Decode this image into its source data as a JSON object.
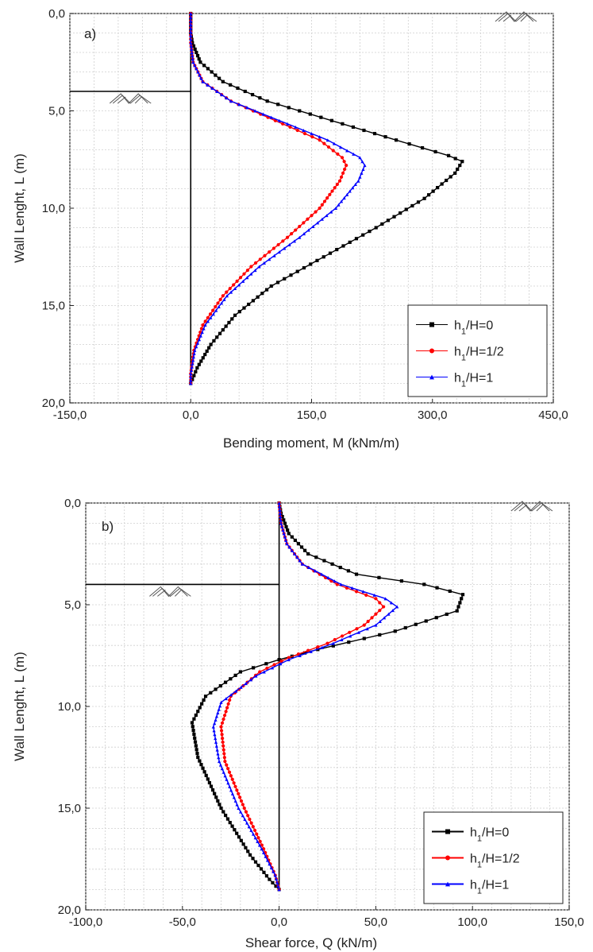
{
  "chart_data": [
    {
      "type": "line",
      "panel_label": "a)",
      "xlabel": "Bending moment, M (kNm/m)",
      "ylabel": "Wall Lenght, L (m)",
      "xlim": [
        -150,
        450
      ],
      "ylim": [
        20,
        0
      ],
      "y_inverted": true,
      "x_ticks": [
        "-150,0",
        "0,0",
        "150,0",
        "300,0",
        "450,0"
      ],
      "y_ticks": [
        "0,0",
        "5,0",
        "10,0",
        "15,0",
        "20,0"
      ],
      "grid": true,
      "legend_position": "bottom-right",
      "annotations": {
        "excavation_level_m": 4,
        "wall_x": 0,
        "wall_bottom_m": 19
      },
      "series": [
        {
          "name": "h1/H=0",
          "color": "#000000",
          "marker": "square",
          "points": [
            [
              0,
              0
            ],
            [
              0,
              1
            ],
            [
              2,
              1.5
            ],
            [
              12,
              2.5
            ],
            [
              40,
              3.5
            ],
            [
              95,
              4.5
            ],
            [
              175,
              5.5
            ],
            [
              255,
              6.5
            ],
            [
              320,
              7.3
            ],
            [
              337,
              7.6
            ],
            [
              328,
              8.2
            ],
            [
              290,
              9.5
            ],
            [
              230,
              11
            ],
            [
              165,
              12.5
            ],
            [
              100,
              14
            ],
            [
              55,
              15.5
            ],
            [
              25,
              17
            ],
            [
              8,
              18.2
            ],
            [
              0,
              19
            ]
          ]
        },
        {
          "name": "h1/H=1/2",
          "color": "#ff0000",
          "marker": "circle",
          "points": [
            [
              0,
              0
            ],
            [
              0,
              1.5
            ],
            [
              3,
              2.5
            ],
            [
              15,
              3.5
            ],
            [
              50,
              4.5
            ],
            [
              105,
              5.5
            ],
            [
              160,
              6.5
            ],
            [
              188,
              7.4
            ],
            [
              193,
              7.8
            ],
            [
              185,
              8.6
            ],
            [
              160,
              10
            ],
            [
              120,
              11.5
            ],
            [
              75,
              13
            ],
            [
              40,
              14.5
            ],
            [
              15,
              16
            ],
            [
              4,
              17.3
            ],
            [
              0,
              18.5
            ],
            [
              0,
              19
            ]
          ]
        },
        {
          "name": "h1/H=1",
          "color": "#0000ff",
          "marker": "triangle",
          "points": [
            [
              0,
              0
            ],
            [
              0,
              1.5
            ],
            [
              3,
              2.5
            ],
            [
              15,
              3.5
            ],
            [
              50,
              4.5
            ],
            [
              110,
              5.5
            ],
            [
              170,
              6.5
            ],
            [
              210,
              7.4
            ],
            [
              216,
              7.8
            ],
            [
              208,
              8.6
            ],
            [
              180,
              10
            ],
            [
              135,
              11.5
            ],
            [
              85,
              13
            ],
            [
              45,
              14.5
            ],
            [
              18,
              16
            ],
            [
              5,
              17.3
            ],
            [
              0,
              18.5
            ],
            [
              0,
              19
            ]
          ]
        }
      ]
    },
    {
      "type": "line",
      "panel_label": "b)",
      "xlabel": "Shear force, Q (kN/m)",
      "ylabel": "Wall Lenght, L (m)",
      "xlim": [
        -100,
        150
      ],
      "ylim": [
        20,
        0
      ],
      "y_inverted": true,
      "x_ticks": [
        "-100,0",
        "-50,0",
        "0,0",
        "50,0",
        "100,0",
        "150,0"
      ],
      "y_ticks": [
        "0,0",
        "5,0",
        "10,0",
        "15,0",
        "20,0"
      ],
      "grid": true,
      "legend_position": "bottom-right",
      "annotations": {
        "excavation_level_m": 4,
        "wall_x": 0,
        "wall_bottom_m": 19
      },
      "series": [
        {
          "name": "h1/H=0",
          "color": "#000000",
          "marker": "square",
          "points": [
            [
              0,
              0
            ],
            [
              1,
              0.5
            ],
            [
              5,
              1.5
            ],
            [
              15,
              2.5
            ],
            [
              40,
              3.5
            ],
            [
              75,
              4
            ],
            [
              95,
              4.5
            ],
            [
              92,
              5.3
            ],
            [
              60,
              6.3
            ],
            [
              20,
              7.2
            ],
            [
              0,
              7.7
            ],
            [
              -20,
              8.3
            ],
            [
              -38,
              9.5
            ],
            [
              -45,
              10.8
            ],
            [
              -42,
              12.5
            ],
            [
              -30,
              15
            ],
            [
              -15,
              17.3
            ],
            [
              -5,
              18.5
            ],
            [
              0,
              19
            ]
          ]
        },
        {
          "name": "h1/H=1/2",
          "color": "#ff0000",
          "marker": "circle",
          "points": [
            [
              0,
              0
            ],
            [
              1,
              1
            ],
            [
              4,
              2
            ],
            [
              12,
              3
            ],
            [
              30,
              4
            ],
            [
              50,
              4.7
            ],
            [
              54,
              5.1
            ],
            [
              44,
              6
            ],
            [
              25,
              6.9
            ],
            [
              5,
              7.6
            ],
            [
              -10,
              8.3
            ],
            [
              -25,
              9.5
            ],
            [
              -30,
              11
            ],
            [
              -28,
              12.7
            ],
            [
              -18,
              15
            ],
            [
              -8,
              17
            ],
            [
              -2,
              18.3
            ],
            [
              0,
              19
            ]
          ]
        },
        {
          "name": "h1/H=1",
          "color": "#0000ff",
          "marker": "triangle",
          "points": [
            [
              0,
              0
            ],
            [
              1,
              1
            ],
            [
              4,
              2
            ],
            [
              12,
              3
            ],
            [
              32,
              4
            ],
            [
              55,
              4.7
            ],
            [
              61,
              5.1
            ],
            [
              50,
              6
            ],
            [
              28,
              6.9
            ],
            [
              5,
              7.7
            ],
            [
              -12,
              8.5
            ],
            [
              -30,
              9.8
            ],
            [
              -34,
              11
            ],
            [
              -31,
              12.7
            ],
            [
              -21,
              15
            ],
            [
              -9,
              17
            ],
            [
              -2,
              18.3
            ],
            [
              0,
              19
            ]
          ]
        }
      ]
    }
  ]
}
